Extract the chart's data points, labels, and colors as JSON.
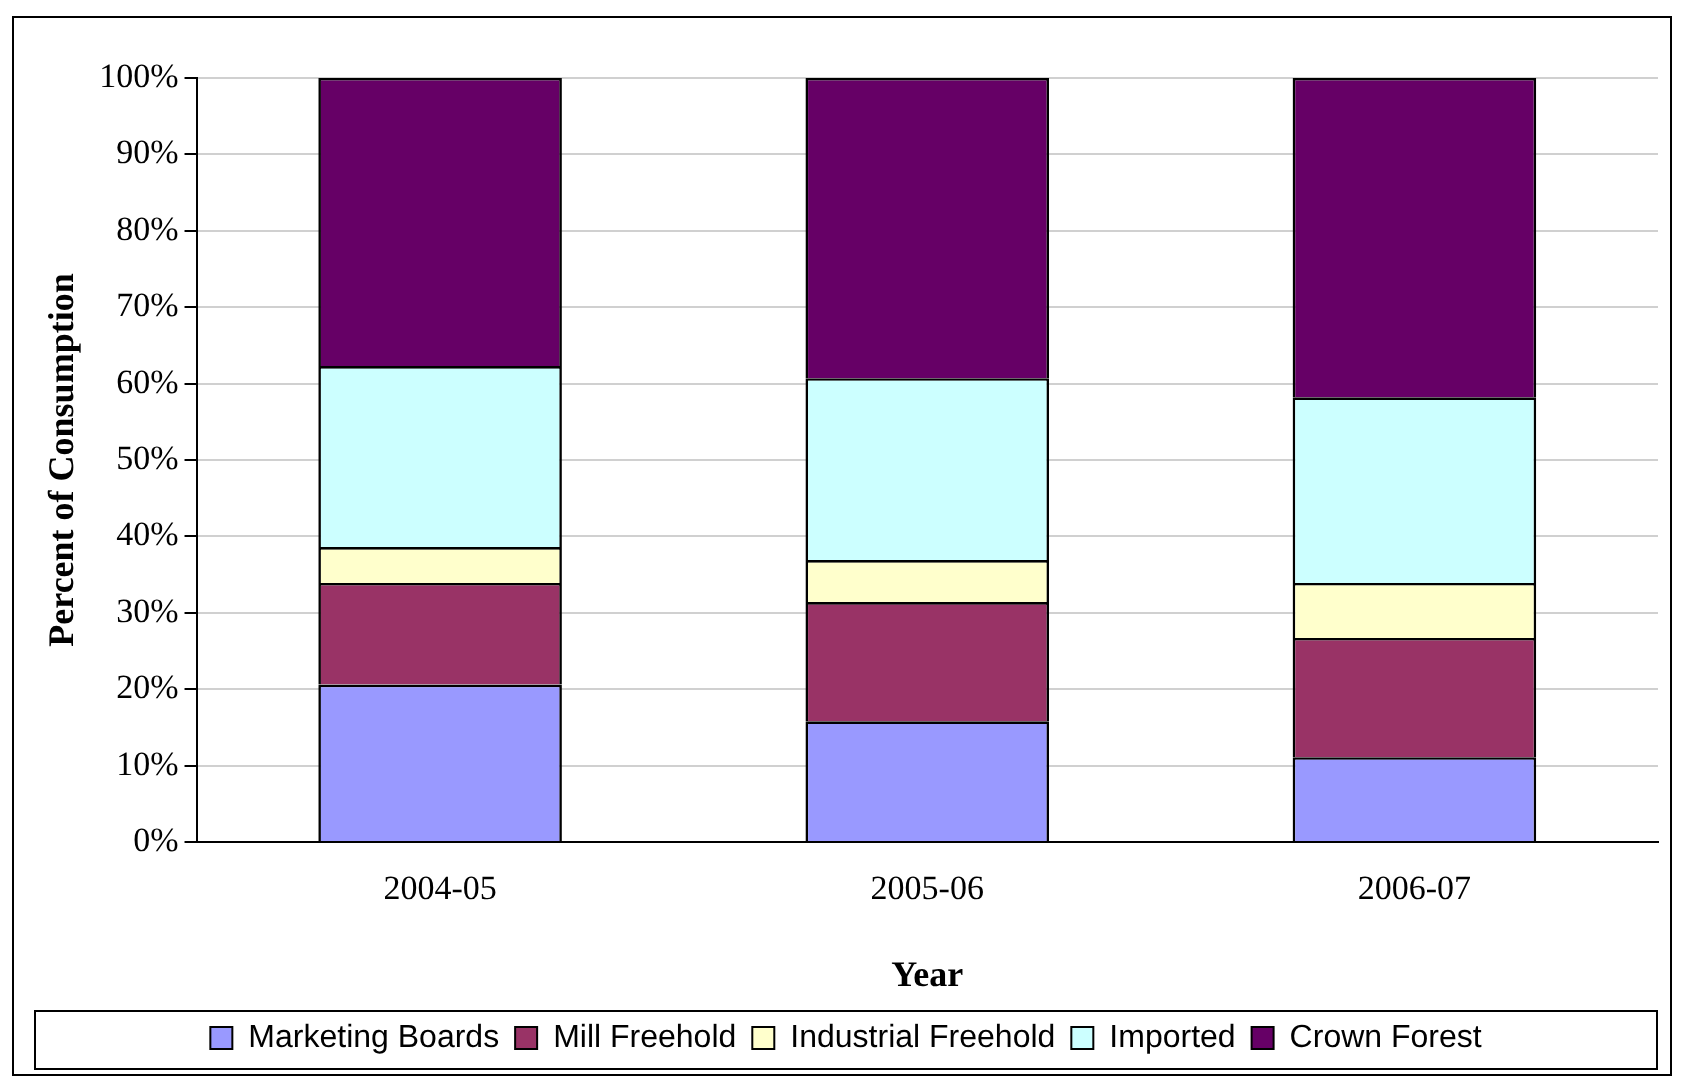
{
  "chart_data": {
    "type": "bar",
    "stacked": true,
    "xlabel": "Year",
    "ylabel": "Percent of Consumption",
    "categories": [
      "2004-05",
      "2005-06",
      "2006-07"
    ],
    "series": [
      {
        "name": "Marketing Boards",
        "color": "#9999ff",
        "values": [
          20.6,
          15.8,
          11.1
        ]
      },
      {
        "name": "Mill Freehold",
        "color": "#993366",
        "values": [
          13.3,
          15.6,
          15.6
        ]
      },
      {
        "name": "Industrial Freehold",
        "color": "#ffffcc",
        "values": [
          4.7,
          5.5,
          7.2
        ]
      },
      {
        "name": "Imported",
        "color": "#ccffff",
        "values": [
          23.7,
          23.8,
          24.3
        ]
      },
      {
        "name": "Crown Forest",
        "color": "#660066",
        "values": [
          37.7,
          39.3,
          41.8
        ]
      }
    ],
    "ylim": [
      0,
      100
    ],
    "yticks": [
      {
        "value": 0,
        "label": "0%"
      },
      {
        "value": 10,
        "label": "10%"
      },
      {
        "value": 20,
        "label": "20%"
      },
      {
        "value": 30,
        "label": "30%"
      },
      {
        "value": 40,
        "label": "40%"
      },
      {
        "value": 50,
        "label": "50%"
      },
      {
        "value": 60,
        "label": "60%"
      },
      {
        "value": 70,
        "label": "70%"
      },
      {
        "value": 80,
        "label": "80%"
      },
      {
        "value": 90,
        "label": "90%"
      },
      {
        "value": 100,
        "label": "100%"
      }
    ],
    "grid": "y",
    "legend": "bottom"
  }
}
